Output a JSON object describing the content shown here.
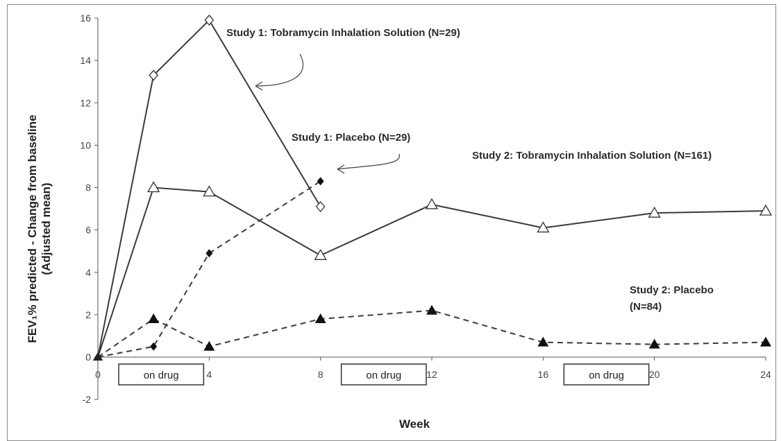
{
  "chart_data": {
    "type": "line",
    "xlabel": "Week",
    "ylabel_line1": "FEV₁% predicted - Change from baseline",
    "ylabel_line2": "(Adjusted mean)",
    "xlim": [
      0,
      24
    ],
    "ylim": [
      -2,
      16
    ],
    "x_ticks": [
      0,
      4,
      8,
      12,
      16,
      20,
      24
    ],
    "y_ticks": [
      -2,
      0,
      2,
      4,
      6,
      8,
      10,
      12,
      14,
      16
    ],
    "grid": false,
    "series": [
      {
        "name": "Study 1: Tobramycin Inhalation Solution (N=29)",
        "line": "solid",
        "marker": "open-diamond",
        "color": "#3a3a3a",
        "x": [
          0,
          2,
          4,
          8
        ],
        "y": [
          0,
          13.3,
          15.9,
          7.1
        ]
      },
      {
        "name": "Study 1: Placebo (N=29)",
        "line": "dashed",
        "marker": "filled-diamond",
        "color": "#3a3a3a",
        "x": [
          0,
          2,
          4,
          8
        ],
        "y": [
          0,
          0.5,
          4.9,
          8.3
        ]
      },
      {
        "name": "Study 2: Tobramycin Inhalation Solution (N=161)",
        "line": "solid",
        "marker": "open-triangle",
        "color": "#3a3a3a",
        "x": [
          0,
          2,
          4,
          8,
          12,
          16,
          20,
          24
        ],
        "y": [
          0,
          8.0,
          7.8,
          4.8,
          7.2,
          6.1,
          6.8,
          6.9
        ]
      },
      {
        "name": "Study 2: Placebo (N=84)",
        "line": "dashed",
        "marker": "filled-triangle",
        "color": "#3a3a3a",
        "x": [
          0,
          2,
          4,
          8,
          12,
          16,
          20,
          24
        ],
        "y": [
          0,
          1.8,
          0.5,
          1.8,
          2.2,
          0.7,
          0.6,
          0.7
        ]
      }
    ],
    "annotations": {
      "s1_tobi": "Study 1:  Tobramycin Inhalation Solution (N=29)",
      "s1_placebo": "Study 1:  Placebo  (N=29)",
      "s2_tobi": "Study 2:  Tobramycin Inhalation Solution (N=161)",
      "s2_placebo_line1": "Study 2:  Placebo",
      "s2_placebo_line2": "(N=84)",
      "on_drug": "on drug"
    },
    "on_drug_periods": [
      [
        0,
        4
      ],
      [
        8,
        12
      ],
      [
        16,
        20
      ]
    ]
  }
}
